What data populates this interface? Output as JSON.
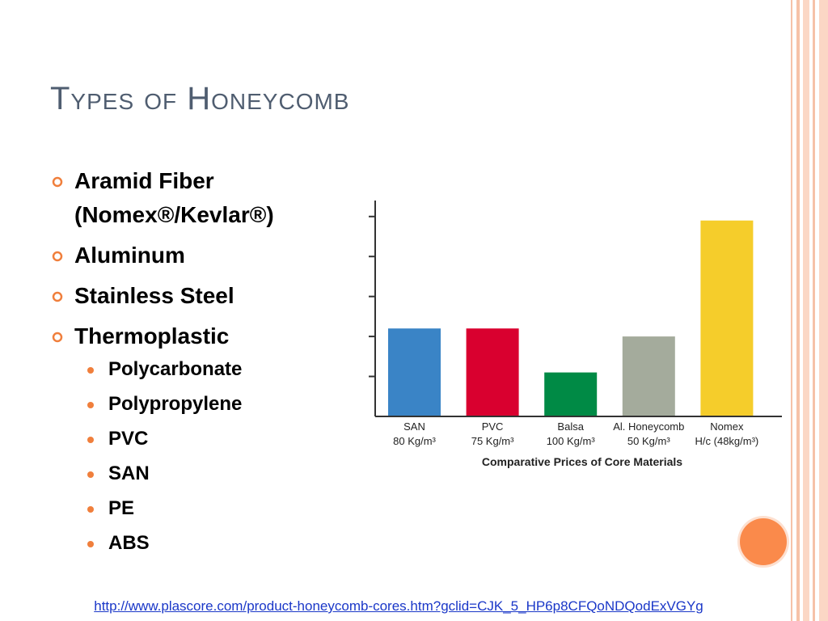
{
  "title": "Types of Honeycomb",
  "bullets": [
    {
      "text": "Aramid Fiber (Nomex®/Kevlar®)",
      "sub": []
    },
    {
      "text": "Aluminum",
      "sub": []
    },
    {
      "text": "Stainless Steel",
      "sub": []
    },
    {
      "text": "Thermoplastic",
      "sub": [
        "Polycarbonate",
        "Polypropylene",
        "PVC",
        "SAN",
        "PE",
        "ABS"
      ]
    }
  ],
  "link": "http://www.plascore.com/product-honeycomb-cores.htm?gclid=CJK_5_HP6p8CFQoNDQodExVGYg",
  "chart_data": {
    "type": "bar",
    "xlabel": "Comparative Prices of Core Materials",
    "categories": [
      "SAN",
      "PVC",
      "Balsa",
      "Al. Honeycomb",
      "Nomex"
    ],
    "sublabels": [
      "80 Kg/m³",
      "75 Kg/m³",
      "100 Kg/m³",
      "50 Kg/m³",
      "H/c (48kg/m³)"
    ],
    "values": [
      2.2,
      2.2,
      1.1,
      2.0,
      4.9
    ],
    "colors": [
      "#3a84c6",
      "#d9002f",
      "#008a45",
      "#a4ab9c",
      "#f5cd2b"
    ],
    "ylim": [
      0,
      5.4
    ],
    "yticks": [
      1,
      2,
      3,
      4,
      5
    ]
  }
}
